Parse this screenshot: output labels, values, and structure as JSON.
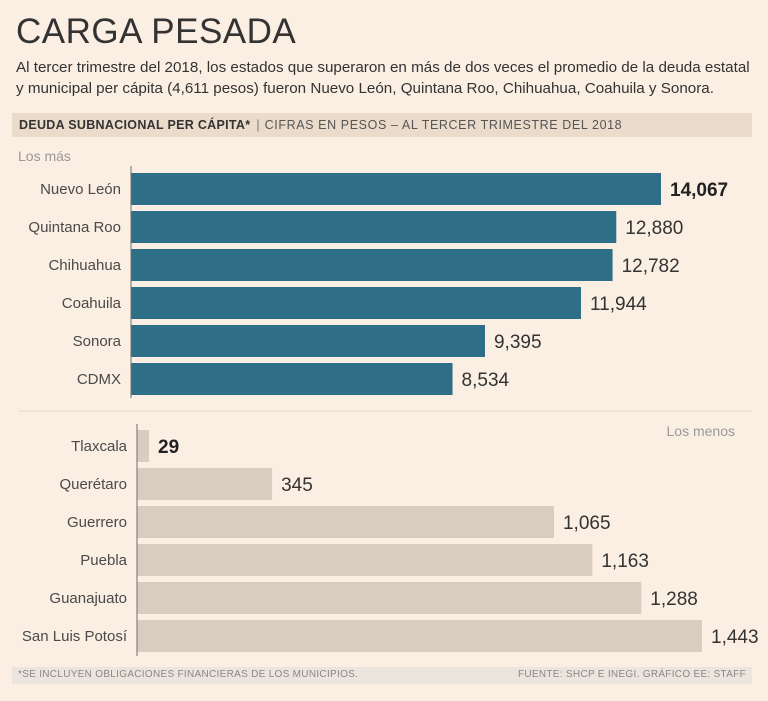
{
  "header": {
    "title": "CARGA PESADA",
    "subtitle": "Al tercer trimestre del 2018, los estados que superaron en más de dos veces el promedio de la deuda estatal y municipal per cápita (4,611 pesos) fueron Nuevo León, Quintana Roo, Chihuahua, Coahuila y Sonora."
  },
  "band": {
    "main": "DEUDA SUBNACIONAL PER CÁPITA*",
    "separator": "|",
    "sub": "CIFRAS EN PESOS – AL TERCER TRIMESTRE DEL 2018"
  },
  "footer": {
    "note": "*SE INCLUYEN OBLIGACIONES FINANCIERAS DE LOS MUNICIPIOS.",
    "source": "FUENTE: SHCP E INEGI. GRÁFICO EE: STAFF"
  },
  "chart_data": [
    {
      "type": "bar",
      "orientation": "horizontal",
      "group_label": "Los más",
      "color": "#2e6e86",
      "categories": [
        "Nuevo León",
        "Quintana Roo",
        "Chihuahua",
        "Coahuila",
        "Sonora",
        "CDMX"
      ],
      "values": [
        14067,
        12880,
        12782,
        11944,
        9395,
        8534
      ],
      "value_labels": [
        "14,067",
        "12,880",
        "12,782",
        "11,944",
        "9,395",
        "8,534"
      ],
      "highlight_index": 0,
      "xlim": [
        0,
        14067
      ]
    },
    {
      "type": "bar",
      "orientation": "horizontal",
      "group_label": "Los menos",
      "color": "#d9ccc0",
      "categories": [
        "Tlaxcala",
        "Querétaro",
        "Guerrero",
        "Puebla",
        "Guanajuato",
        "San Luis Potosí"
      ],
      "values": [
        29,
        345,
        1065,
        1163,
        1288,
        1443
      ],
      "value_labels": [
        "29",
        "345",
        "1,065",
        "1,163",
        "1,288",
        "1,443"
      ],
      "highlight_index": 0,
      "xlim": [
        0,
        1443
      ]
    }
  ]
}
